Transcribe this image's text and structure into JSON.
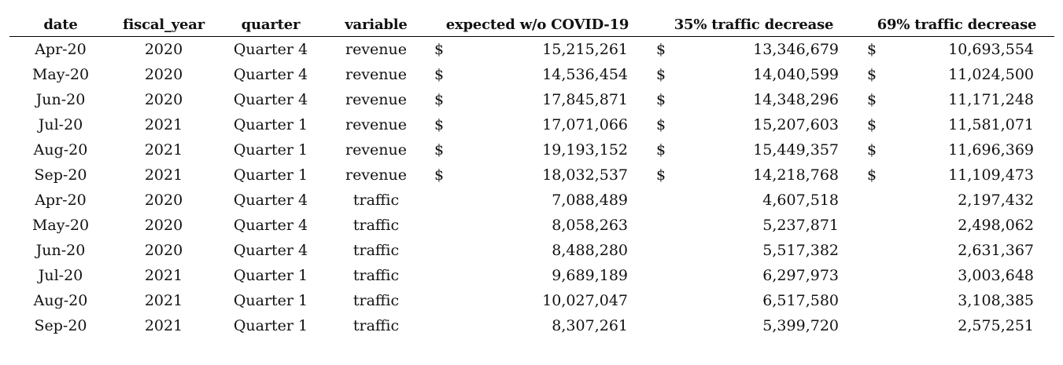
{
  "table": {
    "headers": [
      "date",
      "fiscal_year",
      "quarter",
      "variable",
      "expected w/o COVID-19",
      "35% traffic decrease",
      "69% traffic decrease"
    ],
    "currency_symbol": "$",
    "rows": [
      {
        "date": "Apr-20",
        "fiscal_year": "2020",
        "quarter": "Quarter 4",
        "variable": "revenue",
        "expected": "15,215,261",
        "dec35": "13,346,679",
        "dec69": "10,693,554",
        "cur": "$"
      },
      {
        "date": "May-20",
        "fiscal_year": "2020",
        "quarter": "Quarter 4",
        "variable": "revenue",
        "expected": "14,536,454",
        "dec35": "14,040,599",
        "dec69": "11,024,500",
        "cur": "$"
      },
      {
        "date": "Jun-20",
        "fiscal_year": "2020",
        "quarter": "Quarter 4",
        "variable": "revenue",
        "expected": "17,845,871",
        "dec35": "14,348,296",
        "dec69": "11,171,248",
        "cur": "$"
      },
      {
        "date": "Jul-20",
        "fiscal_year": "2021",
        "quarter": "Quarter 1",
        "variable": "revenue",
        "expected": "17,071,066",
        "dec35": "15,207,603",
        "dec69": "11,581,071",
        "cur": "$"
      },
      {
        "date": "Aug-20",
        "fiscal_year": "2021",
        "quarter": "Quarter 1",
        "variable": "revenue",
        "expected": "19,193,152",
        "dec35": "15,449,357",
        "dec69": "11,696,369",
        "cur": "$"
      },
      {
        "date": "Sep-20",
        "fiscal_year": "2021",
        "quarter": "Quarter 1",
        "variable": "revenue",
        "expected": "18,032,537",
        "dec35": "14,218,768",
        "dec69": "11,109,473",
        "cur": "$"
      },
      {
        "date": "Apr-20",
        "fiscal_year": "2020",
        "quarter": "Quarter 4",
        "variable": "traffic",
        "expected": "7,088,489",
        "dec35": "4,607,518",
        "dec69": "2,197,432",
        "cur": ""
      },
      {
        "date": "May-20",
        "fiscal_year": "2020",
        "quarter": "Quarter 4",
        "variable": "traffic",
        "expected": "8,058,263",
        "dec35": "5,237,871",
        "dec69": "2,498,062",
        "cur": ""
      },
      {
        "date": "Jun-20",
        "fiscal_year": "2020",
        "quarter": "Quarter 4",
        "variable": "traffic",
        "expected": "8,488,280",
        "dec35": "5,517,382",
        "dec69": "2,631,367",
        "cur": ""
      },
      {
        "date": "Jul-20",
        "fiscal_year": "2021",
        "quarter": "Quarter 1",
        "variable": "traffic",
        "expected": "9,689,189",
        "dec35": "6,297,973",
        "dec69": "3,003,648",
        "cur": ""
      },
      {
        "date": "Aug-20",
        "fiscal_year": "2021",
        "quarter": "Quarter 1",
        "variable": "traffic",
        "expected": "10,027,047",
        "dec35": "6,517,580",
        "dec69": "3,108,385",
        "cur": ""
      },
      {
        "date": "Sep-20",
        "fiscal_year": "2021",
        "quarter": "Quarter 1",
        "variable": "traffic",
        "expected": "8,307,261",
        "dec35": "5,399,720",
        "dec69": "2,575,251",
        "cur": ""
      }
    ]
  }
}
